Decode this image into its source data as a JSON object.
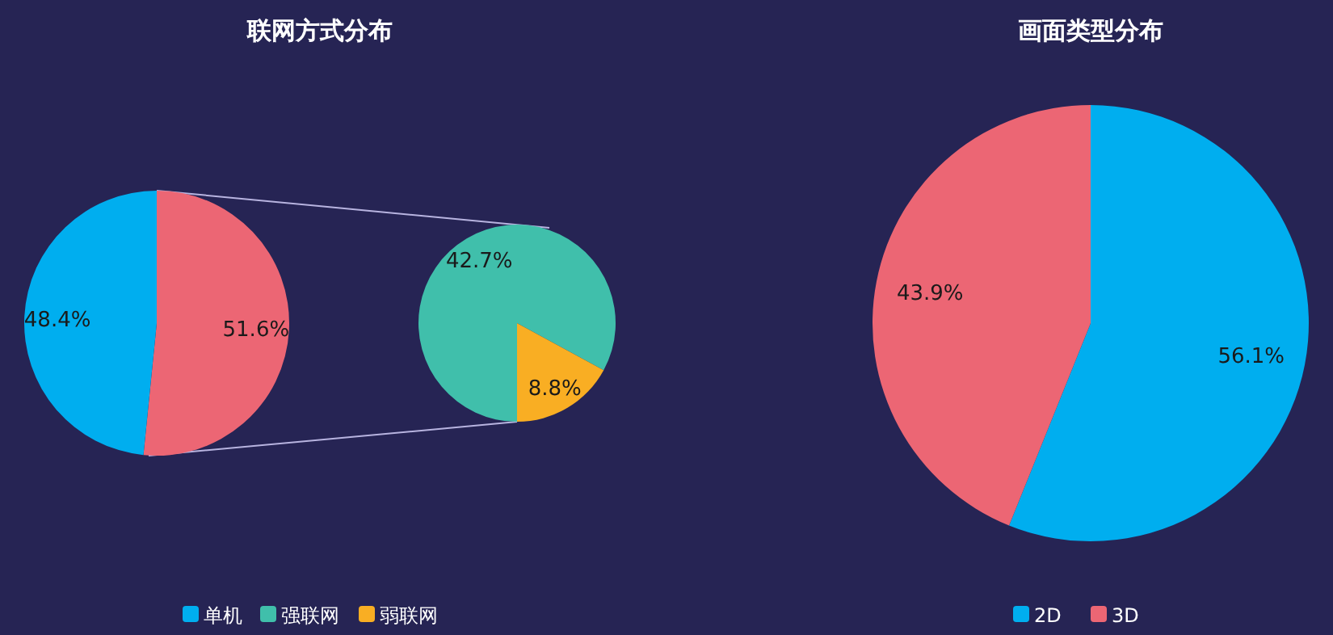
{
  "chart_data": [
    {
      "type": "pie",
      "title": "联网方式分布",
      "categories": [
        null,
        "单机"
      ],
      "values": [
        51.6,
        48.4
      ],
      "colors": [
        "#ec6674",
        "#00aeef"
      ],
      "value_labels": [
        "51.6%",
        "48.4%"
      ],
      "legend": "bottom"
    },
    {
      "type": "pie",
      "categories": [
        "强联网",
        "弱联网"
      ],
      "values": [
        42.7,
        8.8
      ],
      "colors": [
        "#40bfab",
        "#f9ae23"
      ],
      "value_labels": [
        "42.7%",
        "8.8%"
      ],
      "legend": "bottom"
    },
    {
      "type": "pie",
      "title": "画面类型分布",
      "categories": [
        "2D",
        "3D"
      ],
      "values": [
        56.1,
        43.9
      ],
      "colors": [
        "#00aeef",
        "#ec6674"
      ],
      "value_labels": [
        "56.1%",
        "43.9%"
      ],
      "legend": "bottom"
    }
  ]
}
